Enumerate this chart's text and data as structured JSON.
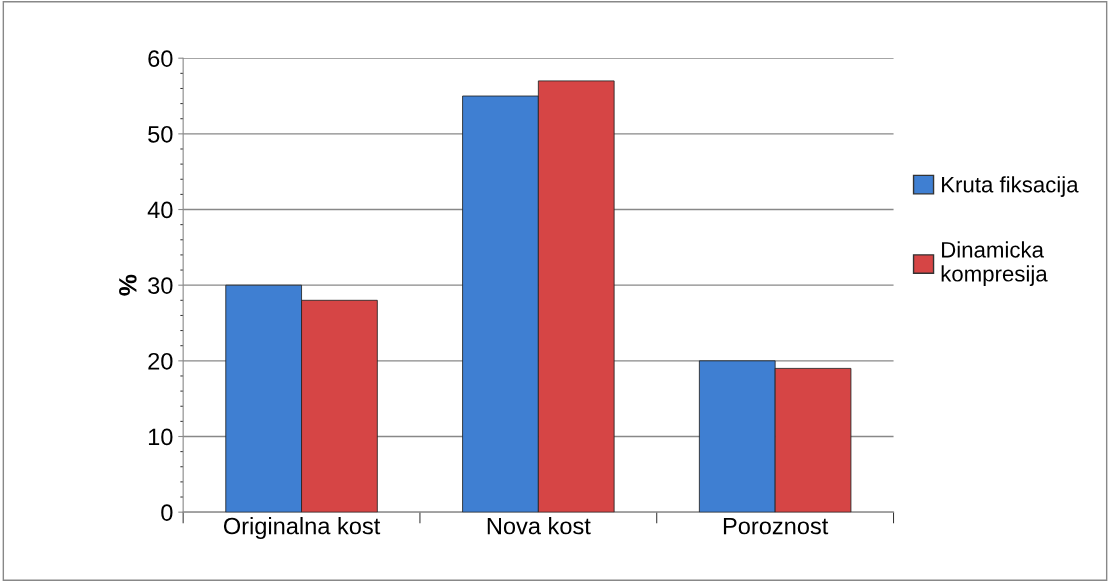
{
  "chart_data": {
    "type": "bar",
    "ylabel": "%",
    "categories": [
      "Originalna kost",
      "Nova kost",
      "Poroznost"
    ],
    "series": [
      {
        "name": "Kruta fiksacija",
        "color": "#3f7fd2",
        "values": [
          30,
          55,
          20
        ]
      },
      {
        "name": "Dinamicka\nkompresija",
        "color": "#d64545",
        "values": [
          28,
          57,
          19
        ]
      }
    ],
    "ylim": [
      0,
      60
    ],
    "yticks": [
      0,
      10,
      20,
      30,
      40,
      50,
      60
    ],
    "grid": "y",
    "legend": "right"
  }
}
